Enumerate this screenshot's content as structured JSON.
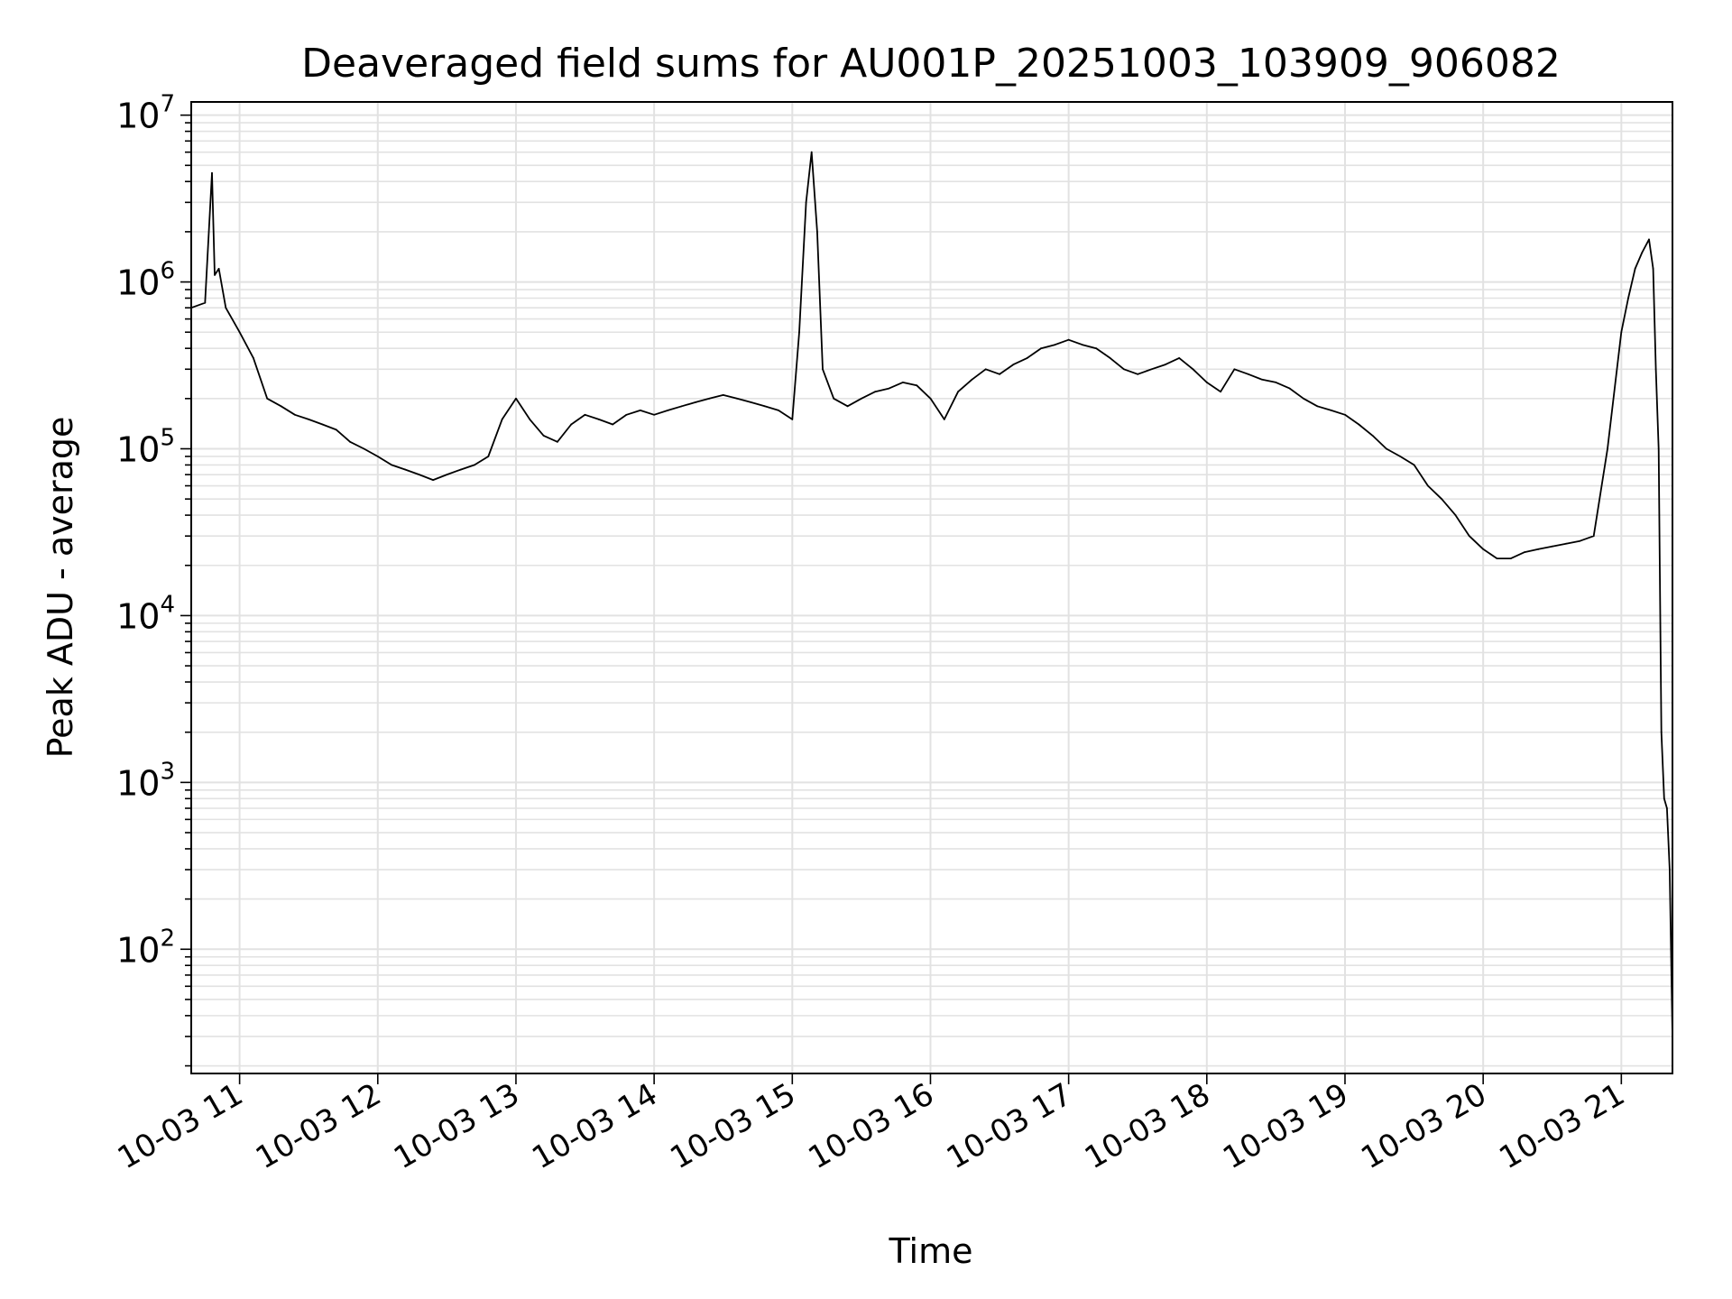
{
  "chart_data": {
    "type": "line",
    "title": "Deaveraged field sums for AU001P_20251003_103909_906082",
    "xlabel": "Time",
    "ylabel": "Peak ADU - average",
    "yscale": "log",
    "ylim": [
      18,
      12000000
    ],
    "xlim_hours": [
      10.65,
      21.37
    ],
    "y_tick_values": [
      100,
      1000,
      10000,
      100000,
      1000000,
      10000000
    ],
    "y_tick_labels": [
      {
        "base": "10",
        "exp": "2"
      },
      {
        "base": "10",
        "exp": "3"
      },
      {
        "base": "10",
        "exp": "4"
      },
      {
        "base": "10",
        "exp": "5"
      },
      {
        "base": "10",
        "exp": "6"
      },
      {
        "base": "10",
        "exp": "7"
      }
    ],
    "x_ticks": [
      {
        "hour": 11,
        "label": "10-03 11"
      },
      {
        "hour": 12,
        "label": "10-03 12"
      },
      {
        "hour": 13,
        "label": "10-03 13"
      },
      {
        "hour": 14,
        "label": "10-03 14"
      },
      {
        "hour": 15,
        "label": "10-03 15"
      },
      {
        "hour": 16,
        "label": "10-03 16"
      },
      {
        "hour": 17,
        "label": "10-03 17"
      },
      {
        "hour": 18,
        "label": "10-03 18"
      },
      {
        "hour": 19,
        "label": "10-03 19"
      },
      {
        "hour": 20,
        "label": "10-03 20"
      },
      {
        "hour": 21,
        "label": "10-03 21"
      }
    ],
    "grid": true,
    "line_color": "#000000",
    "grid_color": "#e2e2e2",
    "series": [
      {
        "name": "Deaveraged field sum",
        "x_hours": [
          10.65,
          10.75,
          10.8,
          10.82,
          10.85,
          10.9,
          11.0,
          11.1,
          11.2,
          11.3,
          11.4,
          11.5,
          11.6,
          11.7,
          11.8,
          11.9,
          12.0,
          12.1,
          12.2,
          12.3,
          12.4,
          12.5,
          12.6,
          12.7,
          12.8,
          12.9,
          13.0,
          13.1,
          13.2,
          13.3,
          13.4,
          13.5,
          13.6,
          13.7,
          13.8,
          13.9,
          14.0,
          14.1,
          14.2,
          14.3,
          14.4,
          14.5,
          14.6,
          14.7,
          14.8,
          14.9,
          15.0,
          15.05,
          15.1,
          15.14,
          15.18,
          15.22,
          15.3,
          15.4,
          15.5,
          15.6,
          15.7,
          15.8,
          15.9,
          16.0,
          16.1,
          16.2,
          16.3,
          16.4,
          16.5,
          16.6,
          16.7,
          16.8,
          16.9,
          17.0,
          17.1,
          17.2,
          17.3,
          17.4,
          17.5,
          17.6,
          17.7,
          17.8,
          17.9,
          18.0,
          18.1,
          18.2,
          18.3,
          18.4,
          18.5,
          18.6,
          18.7,
          18.8,
          18.9,
          19.0,
          19.1,
          19.2,
          19.3,
          19.4,
          19.5,
          19.6,
          19.7,
          19.8,
          19.9,
          20.0,
          20.1,
          20.2,
          20.3,
          20.4,
          20.5,
          20.6,
          20.7,
          20.8,
          20.9,
          21.0,
          21.05,
          21.1,
          21.15,
          21.2,
          21.23,
          21.25,
          21.27,
          21.29,
          21.31,
          21.33,
          21.35,
          21.37
        ],
        "values": [
          700000,
          750000,
          4500000,
          1100000,
          1200000,
          700000,
          500000,
          350000,
          200000,
          180000,
          160000,
          150000,
          140000,
          130000,
          110000,
          100000,
          90000,
          80000,
          75000,
          70000,
          65000,
          70000,
          75000,
          80000,
          90000,
          150000,
          200000,
          150000,
          120000,
          110000,
          140000,
          160000,
          150000,
          140000,
          160000,
          170000,
          160000,
          170000,
          180000,
          190000,
          200000,
          210000,
          200000,
          190000,
          180000,
          170000,
          150000,
          500000,
          3000000,
          6000000,
          2000000,
          300000,
          200000,
          180000,
          200000,
          220000,
          230000,
          250000,
          240000,
          200000,
          150000,
          220000,
          260000,
          300000,
          280000,
          320000,
          350000,
          400000,
          420000,
          450000,
          420000,
          400000,
          350000,
          300000,
          280000,
          300000,
          320000,
          350000,
          300000,
          250000,
          220000,
          300000,
          280000,
          260000,
          250000,
          230000,
          200000,
          180000,
          170000,
          160000,
          140000,
          120000,
          100000,
          90000,
          80000,
          60000,
          50000,
          40000,
          30000,
          25000,
          22000,
          22000,
          24000,
          25000,
          26000,
          27000,
          28000,
          30000,
          100000,
          500000,
          800000,
          1200000,
          1500000,
          1800000,
          1200000,
          300000,
          100000,
          2000,
          800,
          700,
          300,
          30
        ]
      }
    ]
  }
}
